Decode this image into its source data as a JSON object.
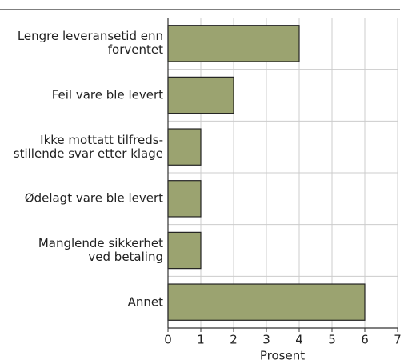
{
  "chart_data": {
    "type": "bar",
    "orientation": "horizontal",
    "categories": [
      "Lengre leveransetid enn\nforventet",
      "Feil vare ble levert",
      "Ikke mottatt tilfreds-\nstillende svar etter klage",
      "Ødelagt vare ble levert",
      "Manglende sikkerhet\nved betaling",
      "Annet"
    ],
    "values": [
      4,
      2,
      1,
      1,
      1,
      6
    ],
    "color": "#9ba370",
    "x_label": "Prosent",
    "xlim": [
      0,
      7
    ],
    "xticks": [
      0,
      1,
      2,
      3,
      4,
      5,
      6,
      7
    ],
    "grid": true
  }
}
